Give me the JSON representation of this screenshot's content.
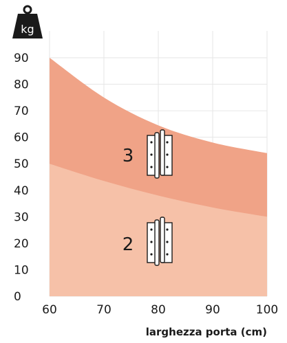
{
  "chart_data": {
    "type": "area",
    "x": [
      60,
      70,
      80,
      90,
      100
    ],
    "xlim": [
      60,
      100
    ],
    "ylim": [
      0,
      90
    ],
    "xticks": [
      60,
      70,
      80,
      90,
      100
    ],
    "yticks": [
      0,
      10,
      20,
      30,
      40,
      50,
      60,
      70,
      80,
      90
    ],
    "xlabel": "larghezza porta (cm)",
    "ylabel": "kg",
    "grid": true,
    "series": [
      {
        "name": "2",
        "values": [
          50,
          43.5,
          38,
          33.5,
          30
        ],
        "color": "#f6c1a8"
      },
      {
        "name": "3",
        "values": [
          90,
          75,
          64.5,
          58,
          54
        ],
        "color": "#f0a387"
      }
    ]
  },
  "icons": {
    "weight_icon": "kg-weight-icon",
    "hinge_icon": "door-hinge-icon"
  }
}
